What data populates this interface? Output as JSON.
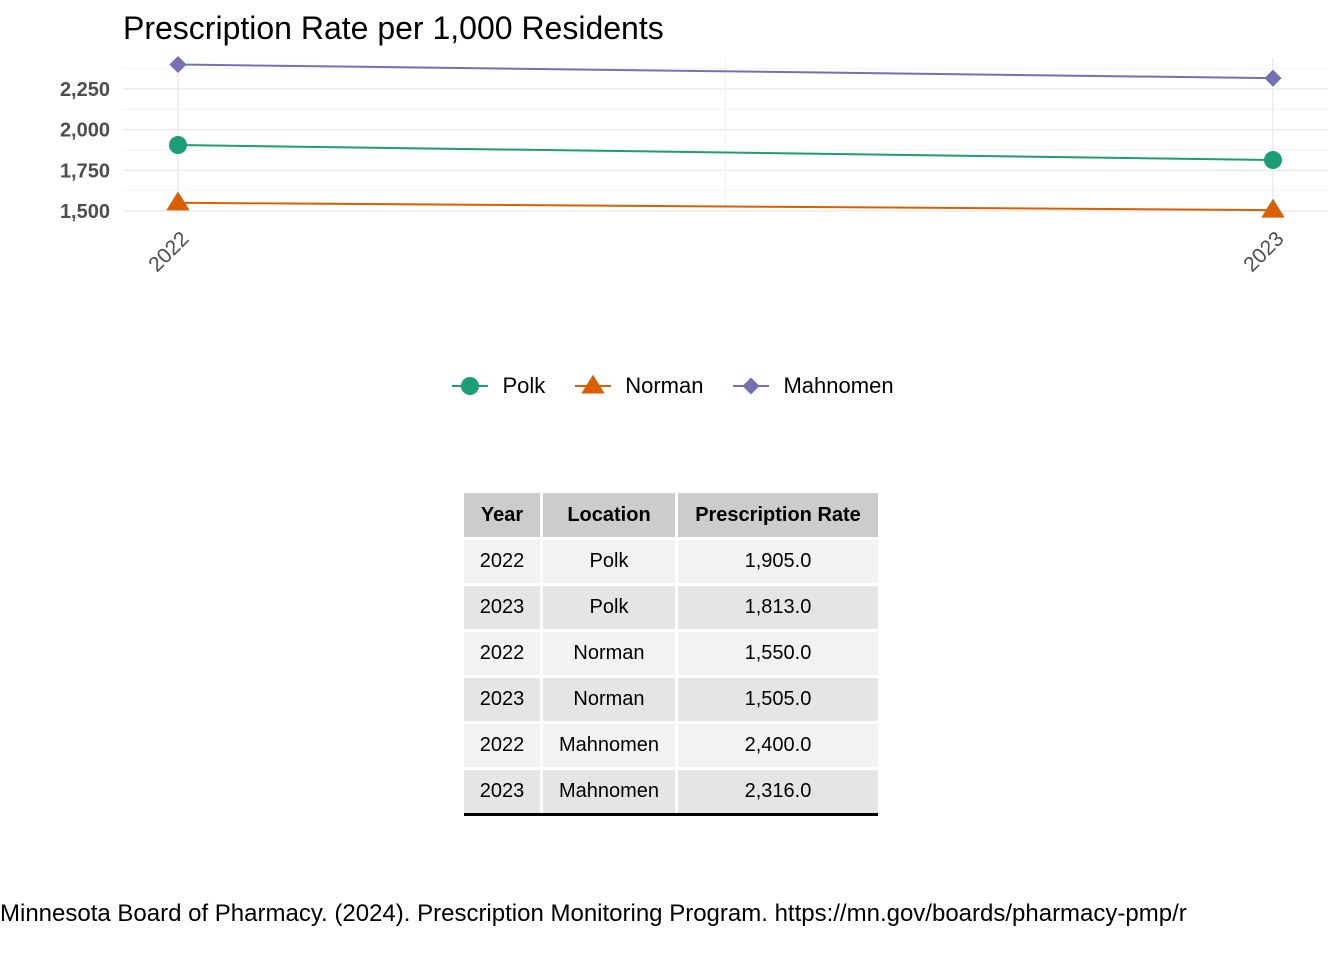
{
  "chart_data": {
    "type": "line",
    "title": "Prescription Rate per 1,000 Residents",
    "xlabel": "",
    "ylabel": "",
    "x": [
      "2022",
      "2023"
    ],
    "ylim": [
      1475,
      2440
    ],
    "yticks": [
      1500,
      1750,
      2000,
      2250
    ],
    "ytick_labels": [
      "1,500",
      "1,750",
      "2,000",
      "2,250"
    ],
    "grid": true,
    "legend_position": "bottom",
    "series": [
      {
        "name": "Polk",
        "values": [
          1905,
          1813
        ],
        "color": "#1b9e77",
        "marker": "circle"
      },
      {
        "name": "Norman",
        "values": [
          1550,
          1505
        ],
        "color": "#d95f02",
        "marker": "triangle"
      },
      {
        "name": "Mahnomen",
        "values": [
          2400,
          2316
        ],
        "color": "#7570b3",
        "marker": "diamond"
      }
    ]
  },
  "table": {
    "headers": [
      "Year",
      "Location",
      "Prescription Rate"
    ],
    "rows": [
      [
        "2022",
        "Polk",
        "1,905.0"
      ],
      [
        "2023",
        "Polk",
        "1,813.0"
      ],
      [
        "2022",
        "Norman",
        "1,550.0"
      ],
      [
        "2023",
        "Norman",
        "1,505.0"
      ],
      [
        "2022",
        "Mahnomen",
        "2,400.0"
      ],
      [
        "2023",
        "Mahnomen",
        "2,316.0"
      ]
    ]
  },
  "caption": "Minnesota Board of Pharmacy. (2024). Prescription Monitoring Program. https://mn.gov/boards/pharmacy-pmp/r"
}
